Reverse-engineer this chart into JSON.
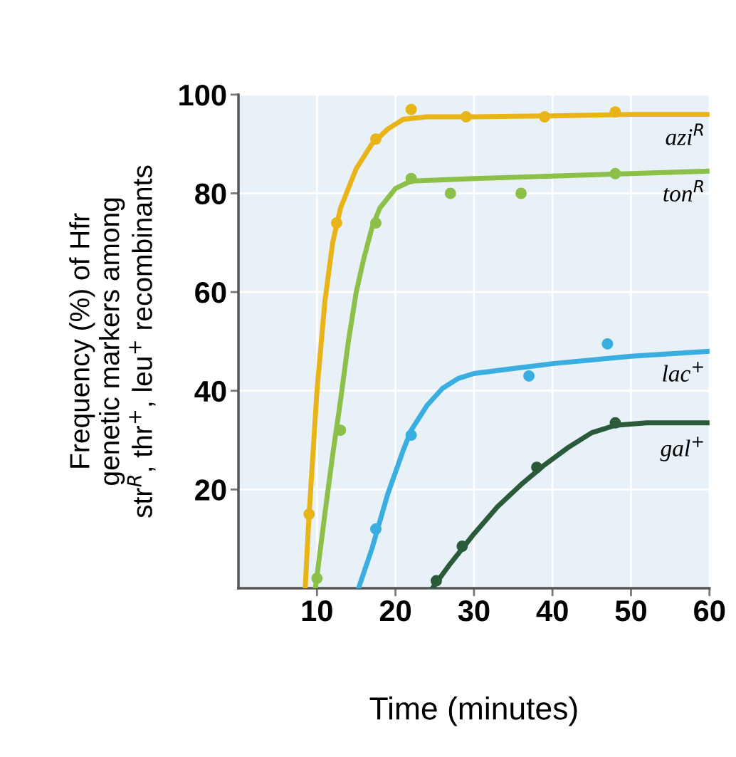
{
  "chart_data": {
    "type": "line",
    "xlabel": "Time (minutes)",
    "ylabel": "Frequency (%) of Hfr\ngenetic markers among\nstr$^{R}$, thr$^{+}$, leu$^{+}$ recombinants",
    "xlim": [
      0,
      60
    ],
    "ylim": [
      0,
      100
    ],
    "xticks": [
      10,
      20,
      30,
      40,
      50,
      60
    ],
    "yticks": [
      20,
      40,
      60,
      80,
      100
    ],
    "grid": true,
    "legend": false,
    "line_style": "solid",
    "series": [
      {
        "name": "azi$^{R}$",
        "color": "#e8b417",
        "x": [
          8.5,
          9,
          10,
          11,
          12,
          13,
          15,
          17,
          19,
          21,
          24,
          30,
          40,
          50,
          60
        ],
        "values": [
          0,
          15,
          40,
          58,
          70,
          77,
          85,
          90,
          93,
          95,
          95.5,
          95.5,
          95.7,
          96,
          96
        ]
      },
      {
        "type": "scatter",
        "marker": "circle",
        "color": "#e8b417",
        "x": [
          9,
          12.5,
          17.5,
          22,
          29,
          39,
          48
        ],
        "values": [
          15,
          74,
          91,
          97,
          95.5,
          95.5,
          96.5
        ]
      },
      {
        "name": "ton$^{R}$",
        "color": "#8cc049",
        "x": [
          9.8,
          11,
          12,
          13,
          14,
          15,
          16,
          17,
          18,
          20,
          22,
          30,
          40,
          50,
          60
        ],
        "values": [
          0,
          15,
          27,
          38,
          50,
          60,
          67,
          73,
          77,
          81,
          82.5,
          83,
          83.5,
          84,
          84.5
        ]
      },
      {
        "type": "scatter",
        "marker": "circle",
        "color": "#8cc049",
        "x": [
          10,
          13,
          17.5,
          22,
          27,
          36,
          48
        ],
        "values": [
          2,
          32,
          74,
          83,
          80,
          80,
          84
        ]
      },
      {
        "name": "lac$^{+}$",
        "color": "#3aaee0",
        "x": [
          15.3,
          17,
          19,
          21,
          22,
          24,
          26,
          28,
          30,
          35,
          40,
          50,
          60
        ],
        "values": [
          0,
          8,
          19,
          28,
          32,
          37,
          40.5,
          42.5,
          43.5,
          44.5,
          45.5,
          47,
          48
        ]
      },
      {
        "type": "scatter",
        "marker": "circle",
        "color": "#3aaee0",
        "x": [
          17.5,
          22,
          37,
          47
        ],
        "values": [
          12,
          31,
          43,
          49.5
        ]
      },
      {
        "name": "gal$^{+}$",
        "color": "#2b5a3a",
        "x": [
          24.7,
          27,
          30,
          33,
          36,
          39,
          42,
          45,
          48,
          52,
          60
        ],
        "values": [
          0,
          5,
          11,
          16.5,
          21,
          25,
          28.5,
          31.5,
          33,
          33.5,
          33.5
        ]
      },
      {
        "type": "scatter",
        "marker": "circle",
        "color": "#2b5a3a",
        "x": [
          25.2,
          28.5,
          38,
          48
        ],
        "values": [
          1.5,
          8.5,
          24.5,
          33.5
        ]
      }
    ]
  }
}
